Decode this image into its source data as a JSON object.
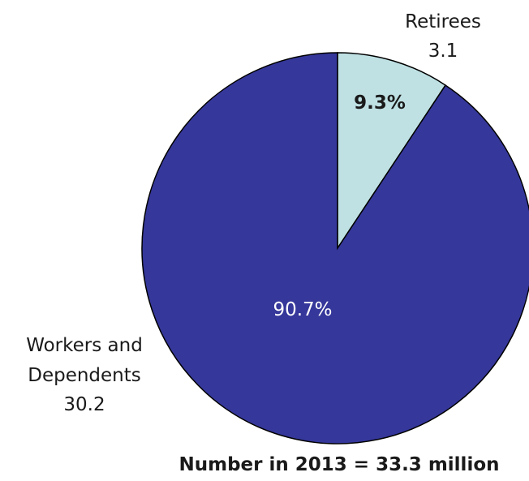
{
  "chart_data": {
    "type": "pie",
    "slices": [
      {
        "name_lines": [
          "Retirees"
        ],
        "value_label": "3.1",
        "value": 3.1,
        "percent_label": "9.3%",
        "percent": 9.3,
        "color": "#bfe1e4"
      },
      {
        "name_lines": [
          "Workers and",
          "Dependents"
        ],
        "value_label": "30.2",
        "value": 30.2,
        "percent_label": "90.7%",
        "percent": 90.7,
        "color": "#35379a"
      }
    ],
    "footer": "Number in 2013 = 33.3 million"
  }
}
